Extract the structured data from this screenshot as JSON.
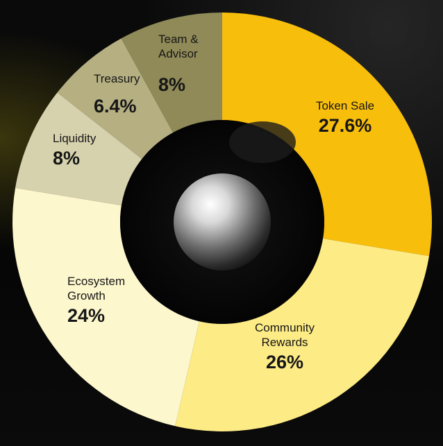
{
  "chart_data": {
    "type": "pie",
    "style": "donut",
    "slices": [
      {
        "name_lines": [
          "Token Sale"
        ],
        "value": 27.6,
        "value_label": "27.6%",
        "color": "#F8BE0C"
      },
      {
        "name_lines": [
          "Community",
          "Rewards"
        ],
        "value": 26,
        "value_label": "26%",
        "color": "#FDEB85"
      },
      {
        "name_lines": [
          "Ecosystem",
          "Growth"
        ],
        "value": 24,
        "value_label": "24%",
        "color": "#FDF7CD"
      },
      {
        "name_lines": [
          "Liquidity"
        ],
        "value": 8,
        "value_label": "8%",
        "color": "#D7D2AE"
      },
      {
        "name_lines": [
          "Treasury"
        ],
        "value": 6.4,
        "value_label": "6.4%",
        "color": "#B5AF82"
      },
      {
        "name_lines": [
          "Team &",
          "Advisor"
        ],
        "value": 8,
        "value_label": "8%",
        "color": "#8F8A58"
      }
    ],
    "start": "top",
    "direction": "clockwise",
    "legend": "none",
    "labels": "inside-slices"
  },
  "background_color": "#050505",
  "hole_color": "#060606"
}
